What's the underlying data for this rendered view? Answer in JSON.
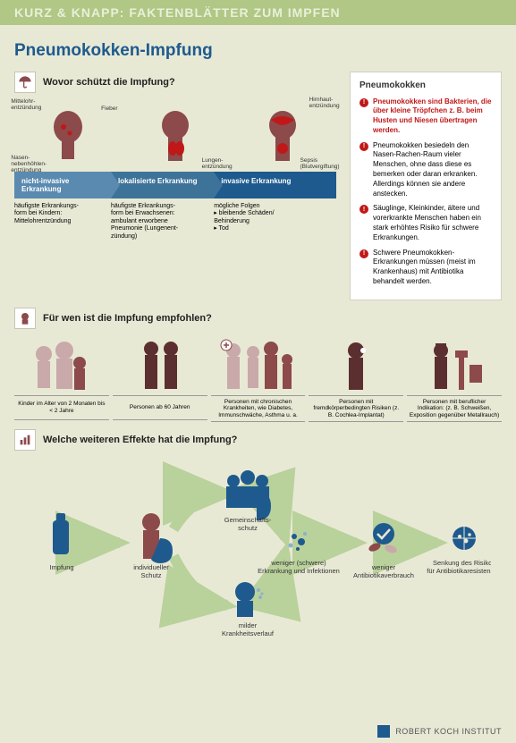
{
  "banner": "KURZ & KNAPP: FAKTENBLÄTTER ZUM IMPFEN",
  "title": "Pneumokokken-Impfung",
  "colors": {
    "pageBg": "#e8e9d5",
    "darkBlue": "#1e5a8e",
    "midBlue": "#3e7399",
    "lightBlue": "#5a8ab0",
    "bannerBg": "#b0c785",
    "bannerText": "#e8f0d8",
    "illLight": "#c9a9a9",
    "illMid": "#8c4a4a",
    "illDark": "#5b2f2f",
    "alertRed": "#c01818",
    "boxBg": "#ffffff"
  },
  "infoBox": {
    "heading": "Pneumokokken",
    "items": [
      {
        "red": true,
        "text": "Pneumokokken sind Bakterien, die über kleine Tröpfchen z. B. beim Husten und Niesen übertragen werden."
      },
      {
        "red": false,
        "text": "Pneumokokken besiedeln den Nasen-Rachen-Raum vieler Menschen, ohne dass diese es bemerken oder daran erkranken. Allerdings können sie andere anstecken."
      },
      {
        "red": false,
        "text": "Säuglinge, Kleinkinder, ältere und vorerkrankte Menschen haben ein stark erhöhtes Risiko für schwere Erkrankungen."
      },
      {
        "red": false,
        "text": "Schwere Pneumokokken-Erkrankungen müssen (meist im Krankenhaus) mit Antibiotika behandelt werden."
      }
    ]
  },
  "section1": {
    "heading": "Wovor schützt die Impfung?",
    "headLabels": {
      "mittelohr": "Mittelohr-\nentzündung",
      "fieber": "Fieber",
      "nasen": "Nasen-\nnebenhöhlen-\nentzündung",
      "lungen": "Lungen-\nentzündung",
      "hirnhaut": "Hirnhaut-\nentzündung",
      "sepsis": "Sepsis\n(Blutvergiftung)"
    },
    "arrows": [
      {
        "label": "nicht-invasive Erkrankung",
        "color": "#5a8ab0",
        "desc": "häufigste Erkrankungs-\nform bei Kindern:\nMittelohrentzündung"
      },
      {
        "label": "lokalisierte Erkrankung",
        "color": "#3e7399",
        "desc": "häufigste Erkrankungs-\nform bei Erwachsenen:\nambulant erworbene\nPneumonie (Lungenent-\nzündung)"
      },
      {
        "label": "invasive Erkrankung",
        "color": "#1e5a8e",
        "desc": "mögliche  Folgen\n▸ bleibende Schäden/\n   Behinderung\n▸ Tod"
      }
    ]
  },
  "section2": {
    "heading": "Für wen ist die Impfung empfohlen?",
    "groups": [
      {
        "label": "Kinder im Alter von 2 Monaten bis < 2 Jahre"
      },
      {
        "label": "Personen ab 60 Jahren"
      },
      {
        "label": "Personen mit chronischen Krankheiten, wie Diabetes, Immunschwäche, Asthma u. a."
      },
      {
        "label": "Personen mit fremdkörperbedingten Risiken (z. B. Cochlea-Implantat)"
      },
      {
        "label": "Personen mit beruflicher Indikation: (z. B. Schweißen, Exposition gegenüber Metallrauch)"
      }
    ]
  },
  "section3": {
    "heading": "Welche weiteren Effekte hat die Impfung?",
    "nodes": {
      "impfung": "Impfung",
      "indiv": "individueller\nSchutz",
      "gemein": "Gemeinschafts-\nschutz",
      "mild": "milder\nKrankheitsverlauf",
      "weniger1": "weniger (schwere)\nErkrankung und Infektionen",
      "weniger2": "weniger\nAntibiotikaverbrauch",
      "senkung": "Senkung des Risikos\nfür Antibiotikaresistenzen"
    }
  },
  "footer": "ROBERT KOCH INSTITUT"
}
